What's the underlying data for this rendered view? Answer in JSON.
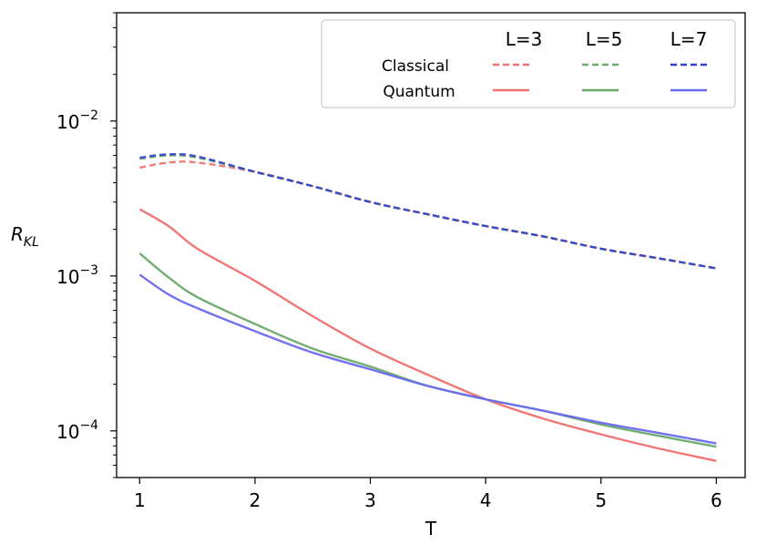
{
  "chart_data": {
    "type": "line",
    "title": "",
    "xlabel": "T",
    "ylabel": "R",
    "ylabel_subscript": "KL",
    "yscale": "log",
    "xlim": [
      0.8,
      6.25
    ],
    "ylim": [
      5e-05,
      0.05
    ],
    "xticks": [
      1,
      2,
      3,
      4,
      5,
      6
    ],
    "xtick_labels": [
      "1",
      "2",
      "3",
      "4",
      "5",
      "6"
    ],
    "yticks": [
      {
        "value": 0.01,
        "base": "10",
        "exp": "−2"
      },
      {
        "value": 0.001,
        "base": "10",
        "exp": "−3"
      },
      {
        "value": 0.0001,
        "base": "10",
        "exp": "−4"
      }
    ],
    "grid": false,
    "legend": {
      "placement": "top-right",
      "column_headers": [
        "L=3",
        "L=5",
        "L=7"
      ],
      "row_labels": [
        "Classical",
        "Quantum"
      ]
    },
    "x": [
      1.0,
      1.25,
      1.5,
      2.0,
      2.5,
      3.0,
      3.5,
      4.0,
      4.5,
      5.0,
      5.5,
      6.0
    ],
    "series": [
      {
        "L": "L=3",
        "kind": "Classical",
        "color": "#f07070",
        "dash": true,
        "values": [
          0.005,
          0.0054,
          0.0054,
          0.0047,
          0.0038,
          0.003,
          0.0025,
          0.0021,
          0.0018,
          0.0015,
          0.0013,
          0.00112
        ]
      },
      {
        "L": "L=5",
        "kind": "Classical",
        "color": "#6aaa6a",
        "dash": true,
        "values": [
          0.0057,
          0.006,
          0.0058,
          0.0047,
          0.0038,
          0.003,
          0.0025,
          0.0021,
          0.0018,
          0.0015,
          0.0013,
          0.00112
        ]
      },
      {
        "L": "L=7",
        "kind": "Classical",
        "color": "#2f3fd0",
        "dash": true,
        "values": [
          0.0058,
          0.0061,
          0.0059,
          0.0047,
          0.0038,
          0.003,
          0.0025,
          0.0021,
          0.0018,
          0.0015,
          0.0013,
          0.00112
        ]
      },
      {
        "L": "L=3",
        "kind": "Quantum",
        "color": "#f07070",
        "dash": false,
        "values": [
          0.0027,
          0.0021,
          0.0015,
          0.00093,
          0.00055,
          0.00034,
          0.00023,
          0.00016,
          0.00012,
          9.5e-05,
          7.7e-05,
          6.4e-05
        ]
      },
      {
        "L": "L=5",
        "kind": "Quantum",
        "color": "#6aaa6a",
        "dash": false,
        "values": [
          0.0014,
          0.00098,
          0.00073,
          0.00049,
          0.00034,
          0.00026,
          0.000195,
          0.00016,
          0.000135,
          0.00011,
          9.3e-05,
          7.9e-05
        ]
      },
      {
        "L": "L=7",
        "kind": "Quantum",
        "color": "#6a6aef",
        "dash": false,
        "values": [
          0.00102,
          0.00076,
          0.00062,
          0.00044,
          0.00032,
          0.00025,
          0.000195,
          0.00016,
          0.000135,
          0.000113,
          9.7e-05,
          8.3e-05
        ]
      }
    ]
  }
}
